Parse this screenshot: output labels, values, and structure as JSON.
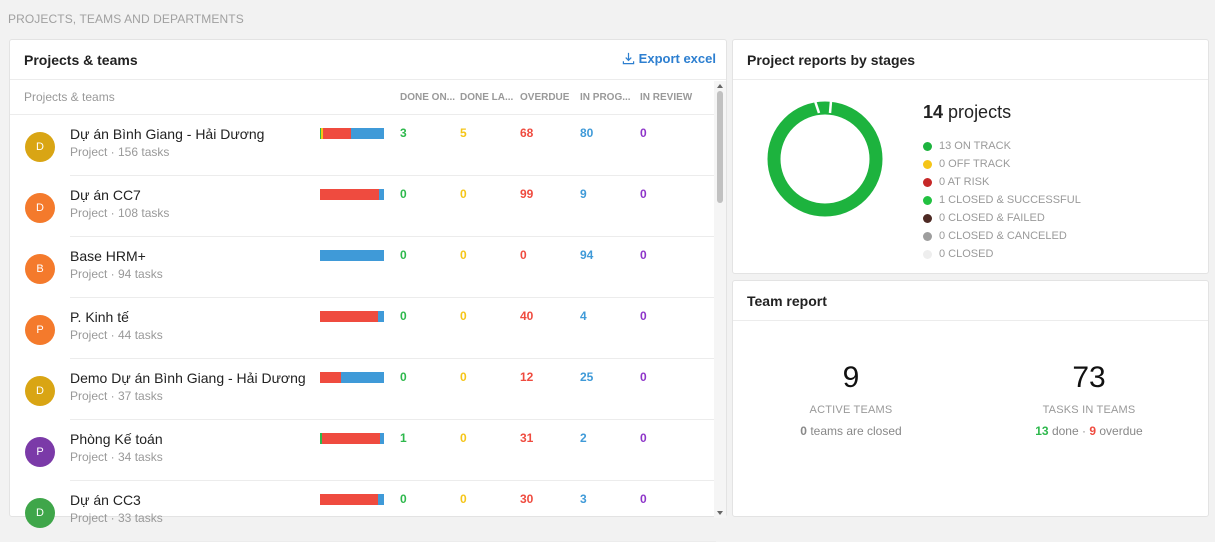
{
  "section_title": "PROJECTS, TEAMS AND DEPARTMENTS",
  "projects_card": {
    "title": "Projects & teams",
    "export_label": "Export excel",
    "columns": {
      "name": "Projects & teams",
      "done_on_time": "DONE ON...",
      "done_late": "DONE LA...",
      "overdue": "OVERDUE",
      "in_progress": "IN PROG...",
      "in_review": "IN REVIEW"
    },
    "rows": [
      {
        "avatar": "D",
        "avatar_color": "#d9a514",
        "name": "Dự án Bình Giang - Hải Dương",
        "sub": "Project · 156 tasks",
        "done": "3",
        "late": "5",
        "overdue": "68",
        "progress": "80",
        "review": "0"
      },
      {
        "avatar": "D",
        "avatar_color": "#f47a2c",
        "name": "Dự án CC7",
        "sub": "Project · 108 tasks",
        "done": "0",
        "late": "0",
        "overdue": "99",
        "progress": "9",
        "review": "0"
      },
      {
        "avatar": "B",
        "avatar_color": "#f47a2c",
        "name": "Base HRM+",
        "sub": "Project · 94 tasks",
        "done": "0",
        "late": "0",
        "overdue": "0",
        "progress": "94",
        "review": "0"
      },
      {
        "avatar": "P",
        "avatar_color": "#f47a2c",
        "name": "P. Kinh tế",
        "sub": "Project · 44 tasks",
        "done": "0",
        "late": "0",
        "overdue": "40",
        "progress": "4",
        "review": "0"
      },
      {
        "avatar": "D",
        "avatar_color": "#d9a514",
        "name": "Demo Dự án Bình Giang - Hải Dương",
        "sub": "Project · 37 tasks",
        "done": "0",
        "late": "0",
        "overdue": "12",
        "progress": "25",
        "review": "0"
      },
      {
        "avatar": "P",
        "avatar_color": "#7b3aa8",
        "name": "Phòng Kế toán",
        "sub": "Project · 34 tasks",
        "done": "1",
        "late": "0",
        "overdue": "31",
        "progress": "2",
        "review": "0"
      },
      {
        "avatar": "D",
        "avatar_color": "#3fa64a",
        "name": "Dự án CC3",
        "sub": "Project · 33 tasks",
        "done": "0",
        "late": "0",
        "overdue": "30",
        "progress": "3",
        "review": "0"
      }
    ]
  },
  "stages_card": {
    "title": "Project reports by stages",
    "count_number": "14",
    "count_label": "projects",
    "legend": [
      {
        "label": "13 ON TRACK",
        "color": "#1db33e"
      },
      {
        "label": "0 OFF TRACK",
        "color": "#f5c518"
      },
      {
        "label": "0 AT RISK",
        "color": "#c62828"
      },
      {
        "label": "1 CLOSED & SUCCESSFUL",
        "color": "#22c141"
      },
      {
        "label": "0 CLOSED & FAILED",
        "color": "#4e2a24"
      },
      {
        "label": "0 CLOSED & CANCELED",
        "color": "#9e9e9e"
      },
      {
        "label": "0 CLOSED",
        "color": "#eeeeee"
      }
    ]
  },
  "team_card": {
    "title": "Team report",
    "active_teams": "9",
    "active_label": "ACTIVE TEAMS",
    "closed_count": "0",
    "closed_text": "teams are closed",
    "tasks_in_teams": "73",
    "tasks_label": "TASKS IN TEAMS",
    "done_count": "13",
    "done_text": "done ·",
    "overdue_count": "9",
    "overdue_text": "overdue"
  }
}
